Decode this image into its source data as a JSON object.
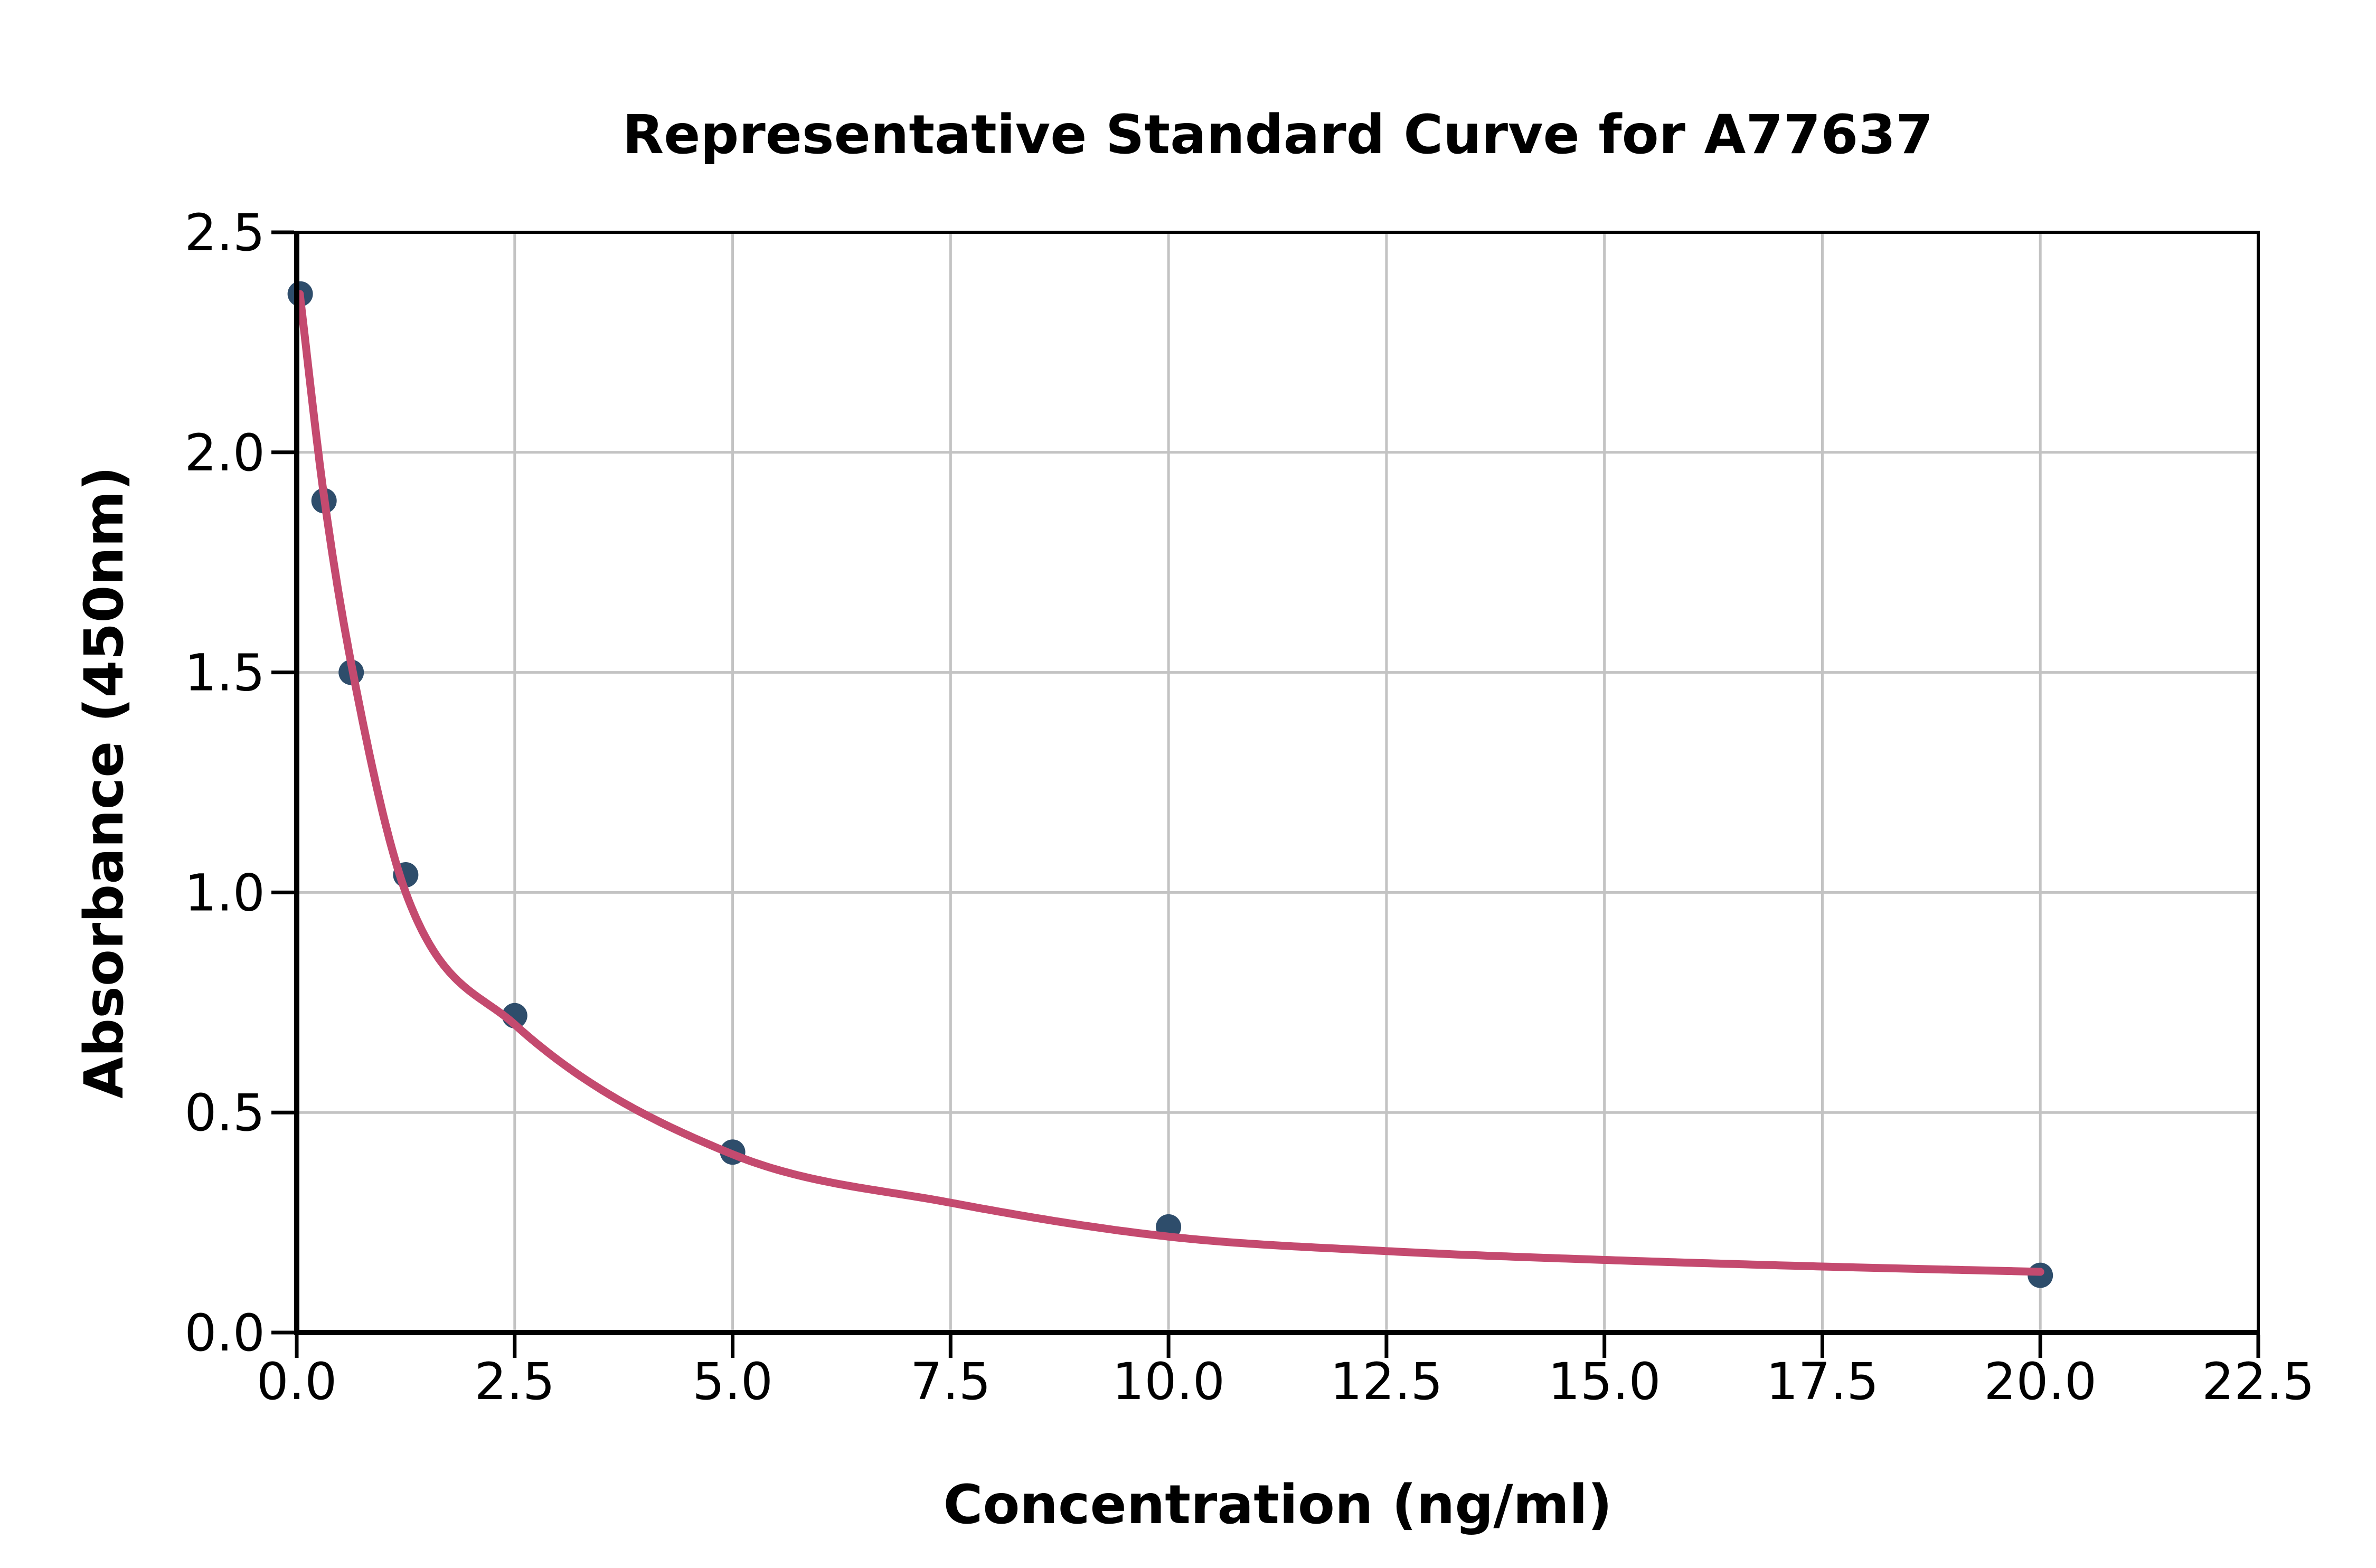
{
  "page": {
    "background": "#ffffff"
  },
  "chart_data": {
    "type": "scatter",
    "title": "Representative Standard Curve for A77637",
    "xlabel": "Concentration (ng/ml)",
    "ylabel": "Absorbance (450nm)",
    "xlim": [
      0,
      22.5
    ],
    "ylim": [
      0,
      2.5
    ],
    "grid": true,
    "legend_position": "none",
    "x_ticks": [
      0,
      2.5,
      5,
      7.5,
      10,
      12.5,
      15,
      17.5,
      20,
      22.5
    ],
    "x_tick_labels": [
      "0.0",
      "2.5",
      "5.0",
      "7.5",
      "10.0",
      "12.5",
      "15.0",
      "17.5",
      "20.0",
      "22.5"
    ],
    "y_ticks": [
      0,
      0.5,
      1,
      1.5,
      2,
      2.5
    ],
    "y_tick_labels": [
      "0.0",
      "0.5",
      "1.0",
      "1.5",
      "2.0",
      "2.5"
    ],
    "series": [
      {
        "name": "standard-points",
        "type": "scatter",
        "x": [
          0.04,
          0.313,
          0.625,
          1.25,
          2.5,
          5,
          10,
          20
        ],
        "y": [
          2.36,
          1.89,
          1.5,
          1.04,
          0.72,
          0.41,
          0.24,
          0.13
        ]
      },
      {
        "name": "4pl-fit-curve",
        "type": "line",
        "points": [
          [
            0.035,
            2.36
          ],
          [
            0.313,
            1.9
          ],
          [
            0.625,
            1.52
          ],
          [
            1.25,
            1.0
          ],
          [
            2.5,
            0.7
          ],
          [
            5,
            0.405
          ],
          [
            7.5,
            0.295
          ],
          [
            10,
            0.218
          ],
          [
            12.5,
            0.185
          ],
          [
            15,
            0.165
          ],
          [
            17.5,
            0.15
          ],
          [
            20,
            0.138
          ]
        ]
      }
    ],
    "colors": {
      "point": "#2e4d6b",
      "curve": "#c44a6f",
      "grid": "#c3c3c3",
      "axis": "#000000",
      "text": "#000000",
      "background": "#ffffff"
    }
  }
}
